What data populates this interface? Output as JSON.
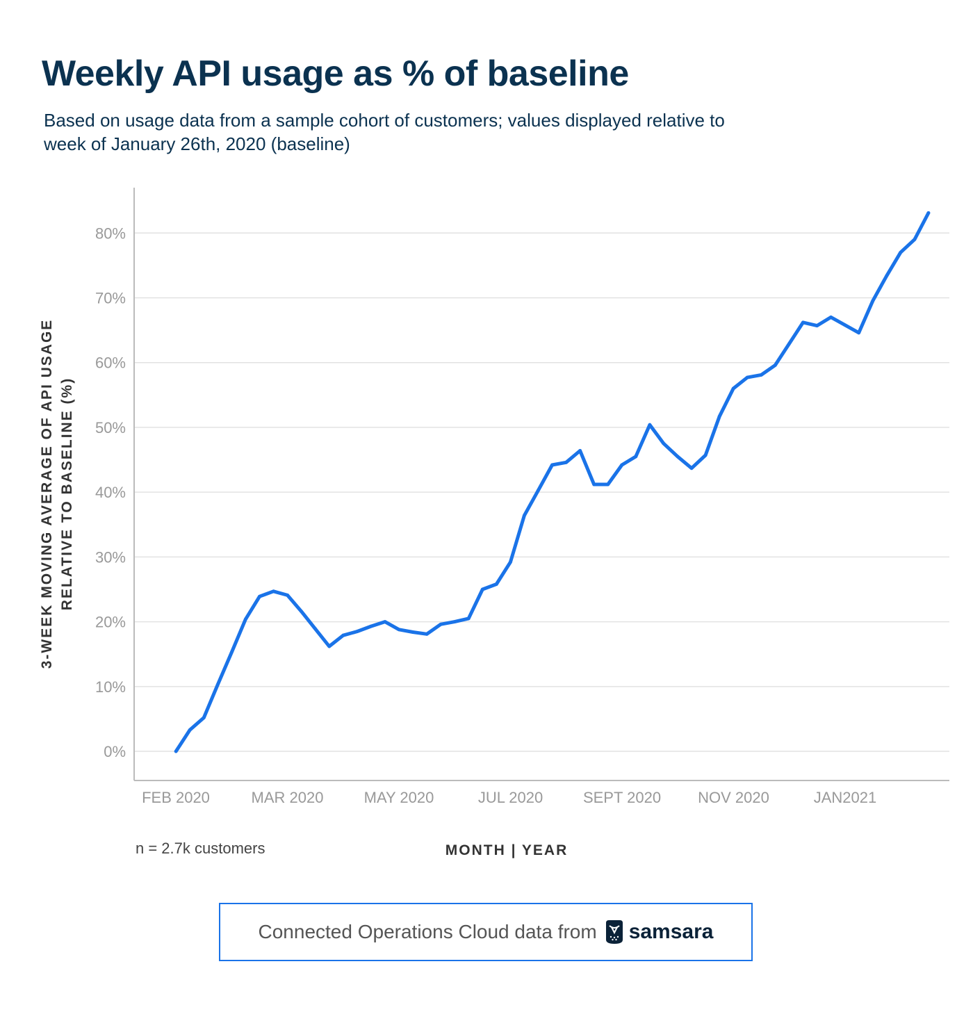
{
  "title": "Weekly API usage as % of baseline",
  "subtitle": "Based on usage data from a sample cohort of customers; values displayed relative to week of January 26th, 2020 (baseline)",
  "note": "n = 2.7k customers",
  "footer": {
    "text": "Connected Operations Cloud data from",
    "brand": "samsara",
    "icon": "owl-logo-icon"
  },
  "colors": {
    "line": "#1a73e8",
    "title": "#0b3250",
    "grid": "#e2e2e2",
    "axis": "#bbbbbb",
    "tick": "#999999",
    "label": "#333333"
  },
  "chart_data": {
    "type": "line",
    "title": "Weekly API usage as % of baseline",
    "xlabel": "MONTH | YEAR",
    "ylabel": "3-WEEK MOVING AVERAGE OF API USAGE RELATIVE TO BASELINE (%)",
    "ylabel_lines": [
      "3-WEEK MOVING AVERAGE OF API USAGE",
      "RELATIVE TO BASELINE (%)"
    ],
    "x_ticks": [
      "FEB 2020",
      "MAR 2020",
      "MAY 2020",
      "JUL 2020",
      "SEPT 2020",
      "NOV 2020",
      "JAN2021"
    ],
    "y_ticks": [
      "0%",
      "10%",
      "20%",
      "30%",
      "40%",
      "50%",
      "60%",
      "70%",
      "80%"
    ],
    "ylim": [
      -4.5,
      87
    ],
    "xlim": [
      -3,
      55.5
    ],
    "grid": true,
    "legend": "none",
    "series": [
      {
        "x": [
          0,
          1,
          2,
          3,
          4,
          5,
          6,
          7,
          8,
          9,
          10,
          11,
          12,
          13,
          14,
          15,
          16,
          17,
          18,
          19,
          20,
          21,
          22,
          23,
          24,
          25,
          26,
          27,
          28,
          29,
          30,
          31,
          32,
          33,
          34,
          35,
          36,
          37,
          38,
          39,
          40,
          41,
          42,
          43,
          44,
          45,
          46,
          47,
          48,
          49,
          50,
          51,
          52,
          53
        ],
        "values": [
          0,
          3.3,
          5.2,
          10.3,
          15.3,
          20.4,
          23.9,
          24.7,
          24.1,
          21.6,
          18.9,
          16.2,
          17.9,
          18.5,
          19.3,
          20.0,
          18.8,
          18.4,
          18.1,
          19.6,
          20.0,
          20.5,
          25.0,
          25.8,
          29.2,
          36.4,
          40.3,
          44.2,
          44.6,
          46.4,
          41.2,
          41.2,
          44.2,
          45.5,
          50.4,
          47.5,
          45.5,
          43.7,
          45.7,
          51.7,
          56.0,
          57.7,
          58.1,
          59.6,
          62.9,
          66.2,
          65.7,
          67.0,
          65.8,
          64.6,
          69.5,
          73.4,
          77.0,
          79.0
        ]
      }
    ],
    "series_end": {
      "x": 54,
      "value": 83.1
    }
  }
}
